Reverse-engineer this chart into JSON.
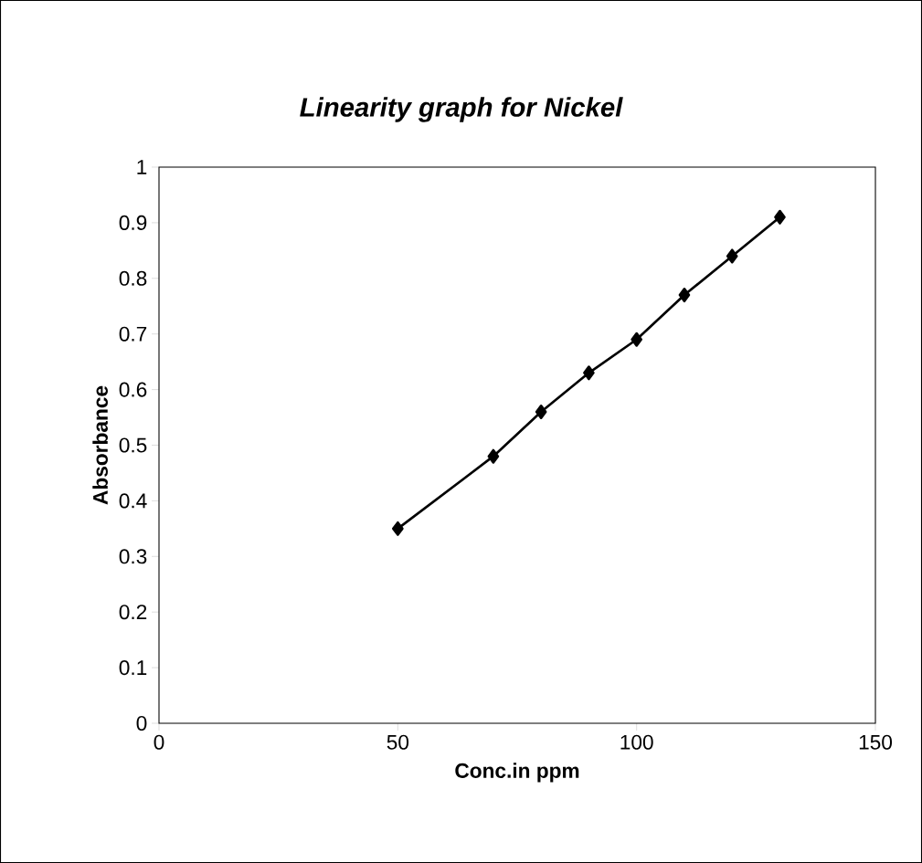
{
  "chart_data": {
    "type": "line",
    "title": "Linearity graph for Nickel",
    "xlabel": "Conc.in ppm",
    "ylabel": "Absorbance",
    "x": [
      50,
      70,
      80,
      90,
      100,
      110,
      120,
      130
    ],
    "series": [
      {
        "color": "#000000",
        "values": [
          0.35,
          0.48,
          0.56,
          0.63,
          0.69,
          0.77,
          0.84,
          0.91
        ]
      }
    ],
    "xlim": [
      0,
      150
    ],
    "xticks": [
      0,
      50,
      100,
      150
    ],
    "ylim": [
      0,
      1
    ],
    "yticks": [
      0,
      0.1,
      0.2,
      0.3,
      0.4,
      0.5,
      0.6,
      0.7,
      0.8,
      0.9,
      1
    ],
    "grid": false,
    "marker": "diamond",
    "line_style": "solid"
  }
}
